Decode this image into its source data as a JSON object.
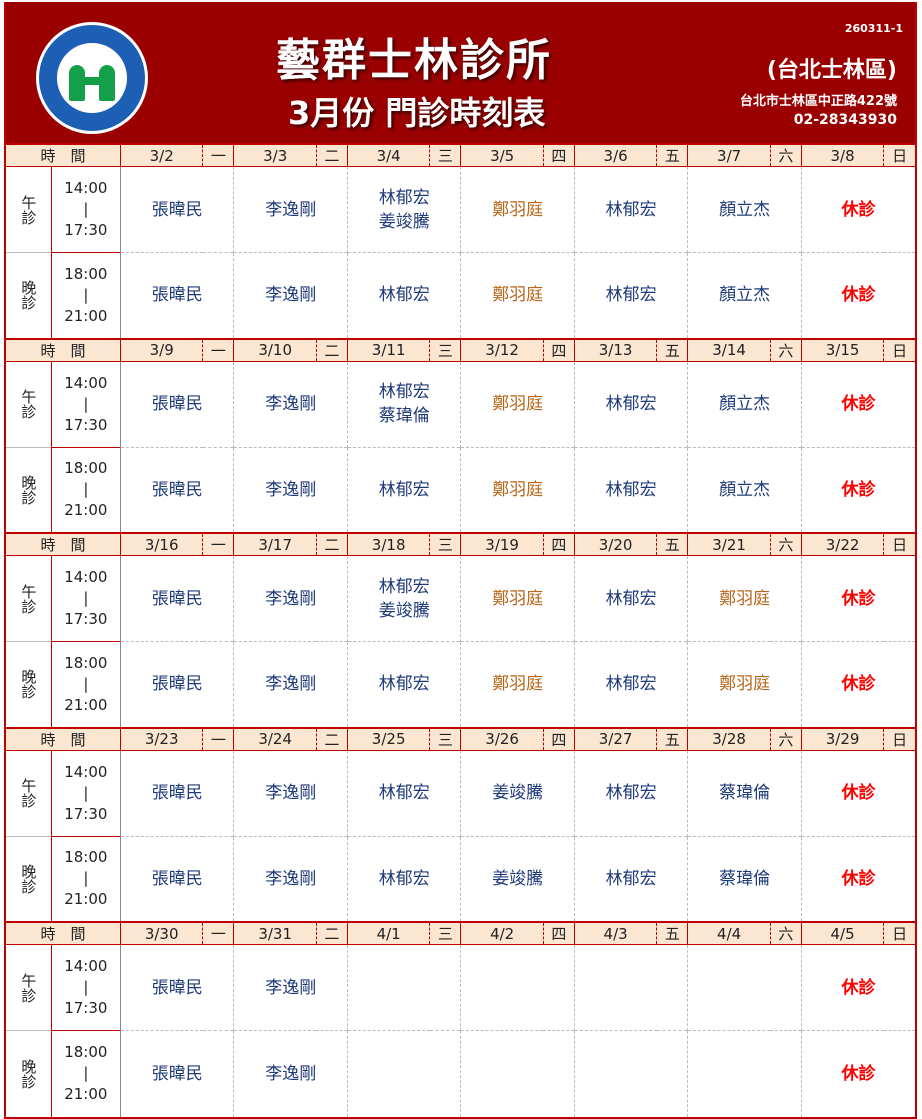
{
  "header": {
    "logo_text": "全民健康保險 NATIONAL HEALTH INSURANCE",
    "title": "藝群士林診所",
    "subtitle": "3月份 門診時刻表",
    "code": "260311-1",
    "district": "(台北士林區)",
    "address": "台北市士林區中正路422號",
    "phone": "02-28343930"
  },
  "colors": {
    "header_bg": "#9b0000",
    "doctor": "#1f3a7a",
    "doctor_alt": "#b8661a",
    "closed": "#ff0000",
    "day_header_bg": "#fbe6d2"
  },
  "alt_color_doctors": [
    "鄭羽庭"
  ],
  "time_label": "時　間",
  "weekdays": [
    "一",
    "二",
    "三",
    "四",
    "五",
    "六",
    "日"
  ],
  "sessions": [
    {
      "label": "午診",
      "start": "14:00",
      "sep": "|",
      "end": "17:30"
    },
    {
      "label": "晚診",
      "start": "18:00",
      "sep": "|",
      "end": "21:00"
    }
  ],
  "weeks": [
    {
      "dates": [
        "3/2",
        "3/3",
        "3/4",
        "3/5",
        "3/6",
        "3/7",
        "3/8"
      ],
      "afternoon": [
        "張暐民",
        "李逸剛",
        "林郁宏\n姜竣騰",
        "鄭羽庭",
        "林郁宏",
        "顏立杰",
        "休診"
      ],
      "evening": [
        "張暐民",
        "李逸剛",
        "林郁宏",
        "鄭羽庭",
        "林郁宏",
        "顏立杰",
        "休診"
      ]
    },
    {
      "dates": [
        "3/9",
        "3/10",
        "3/11",
        "3/12",
        "3/13",
        "3/14",
        "3/15"
      ],
      "afternoon": [
        "張暐民",
        "李逸剛",
        "林郁宏\n蔡瑋倫",
        "鄭羽庭",
        "林郁宏",
        "顏立杰",
        "休診"
      ],
      "evening": [
        "張暐民",
        "李逸剛",
        "林郁宏",
        "鄭羽庭",
        "林郁宏",
        "顏立杰",
        "休診"
      ]
    },
    {
      "dates": [
        "3/16",
        "3/17",
        "3/18",
        "3/19",
        "3/20",
        "3/21",
        "3/22"
      ],
      "afternoon": [
        "張暐民",
        "李逸剛",
        "林郁宏\n姜竣騰",
        "鄭羽庭",
        "林郁宏",
        "鄭羽庭",
        "休診"
      ],
      "evening": [
        "張暐民",
        "李逸剛",
        "林郁宏",
        "鄭羽庭",
        "林郁宏",
        "鄭羽庭",
        "休診"
      ]
    },
    {
      "dates": [
        "3/23",
        "3/24",
        "3/25",
        "3/26",
        "3/27",
        "3/28",
        "3/29"
      ],
      "afternoon": [
        "張暐民",
        "李逸剛",
        "林郁宏",
        "姜竣騰",
        "林郁宏",
        "蔡瑋倫",
        "休診"
      ],
      "evening": [
        "張暐民",
        "李逸剛",
        "林郁宏",
        "姜竣騰",
        "林郁宏",
        "蔡瑋倫",
        "休診"
      ]
    },
    {
      "dates": [
        "3/30",
        "3/31",
        "4/1",
        "4/2",
        "4/3",
        "4/4",
        "4/5"
      ],
      "afternoon": [
        "張暐民",
        "李逸剛",
        "",
        "",
        "",
        "",
        "休診"
      ],
      "evening": [
        "張暐民",
        "李逸剛",
        "",
        "",
        "",
        "",
        "休診"
      ]
    }
  ]
}
